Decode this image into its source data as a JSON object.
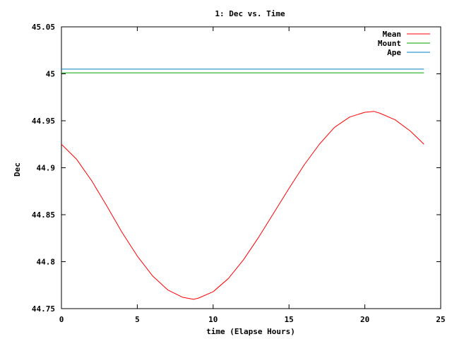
{
  "chart_data": {
    "type": "line",
    "title": "1: Dec vs. Time",
    "xlabel": "time (Elapse Hours)",
    "ylabel": "Dec",
    "xlim": [
      0,
      25
    ],
    "ylim": [
      44.75,
      45.05
    ],
    "x_ticks": [
      0,
      5,
      10,
      15,
      20,
      25
    ],
    "x_tick_labels": [
      "0",
      "5",
      "10",
      "15",
      "20",
      "25"
    ],
    "y_ticks": [
      44.75,
      44.8,
      44.85,
      44.9,
      44.95,
      45,
      45.05
    ],
    "y_tick_labels": [
      "44.75",
      "44.8",
      "44.85",
      "44.9",
      "44.95",
      "45",
      "45.05"
    ],
    "grid": false,
    "legend_position": "top-right",
    "series": [
      {
        "name": "Mean",
        "color": "#ff0000",
        "x": [
          0,
          1,
          2,
          3,
          4,
          5,
          6,
          7,
          8,
          8.7,
          9,
          10,
          11,
          12,
          13,
          14,
          15,
          16,
          17,
          18,
          19,
          20,
          20.6,
          21,
          22,
          23,
          23.9
        ],
        "y": [
          44.925,
          44.909,
          44.886,
          44.859,
          44.831,
          44.806,
          44.785,
          44.77,
          44.762,
          44.76,
          44.761,
          44.768,
          44.782,
          44.802,
          44.826,
          44.852,
          44.878,
          44.903,
          44.925,
          44.943,
          44.954,
          44.959,
          44.96,
          44.958,
          44.951,
          44.939,
          44.925
        ]
      },
      {
        "name": "Mount",
        "color": "#00a000",
        "x": [
          0,
          23.9
        ],
        "y": [
          45.001,
          45.001
        ]
      },
      {
        "name": "Ape",
        "color": "#0080c0",
        "x": [
          0,
          23.9
        ],
        "y": [
          45.005,
          45.005
        ]
      }
    ]
  }
}
